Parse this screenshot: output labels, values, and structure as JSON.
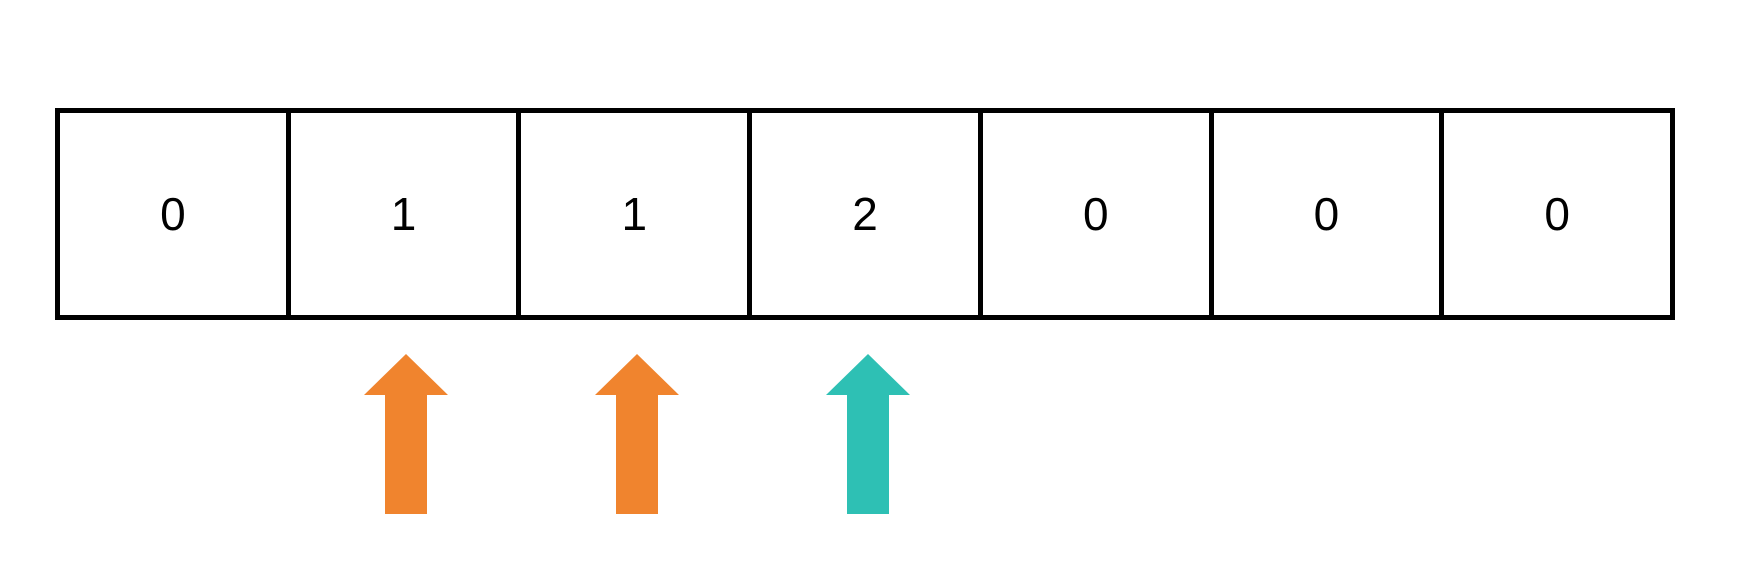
{
  "array": {
    "cells": [
      "0",
      "1",
      "1",
      "2",
      "0",
      "0",
      "0"
    ]
  },
  "pointers": [
    {
      "index": 1,
      "color": "#F0842E",
      "icon": "up-arrow-icon"
    },
    {
      "index": 2,
      "color": "#F0842E",
      "icon": "up-arrow-icon"
    },
    {
      "index": 3,
      "color": "#2EC0B4",
      "icon": "up-arrow-icon"
    }
  ]
}
